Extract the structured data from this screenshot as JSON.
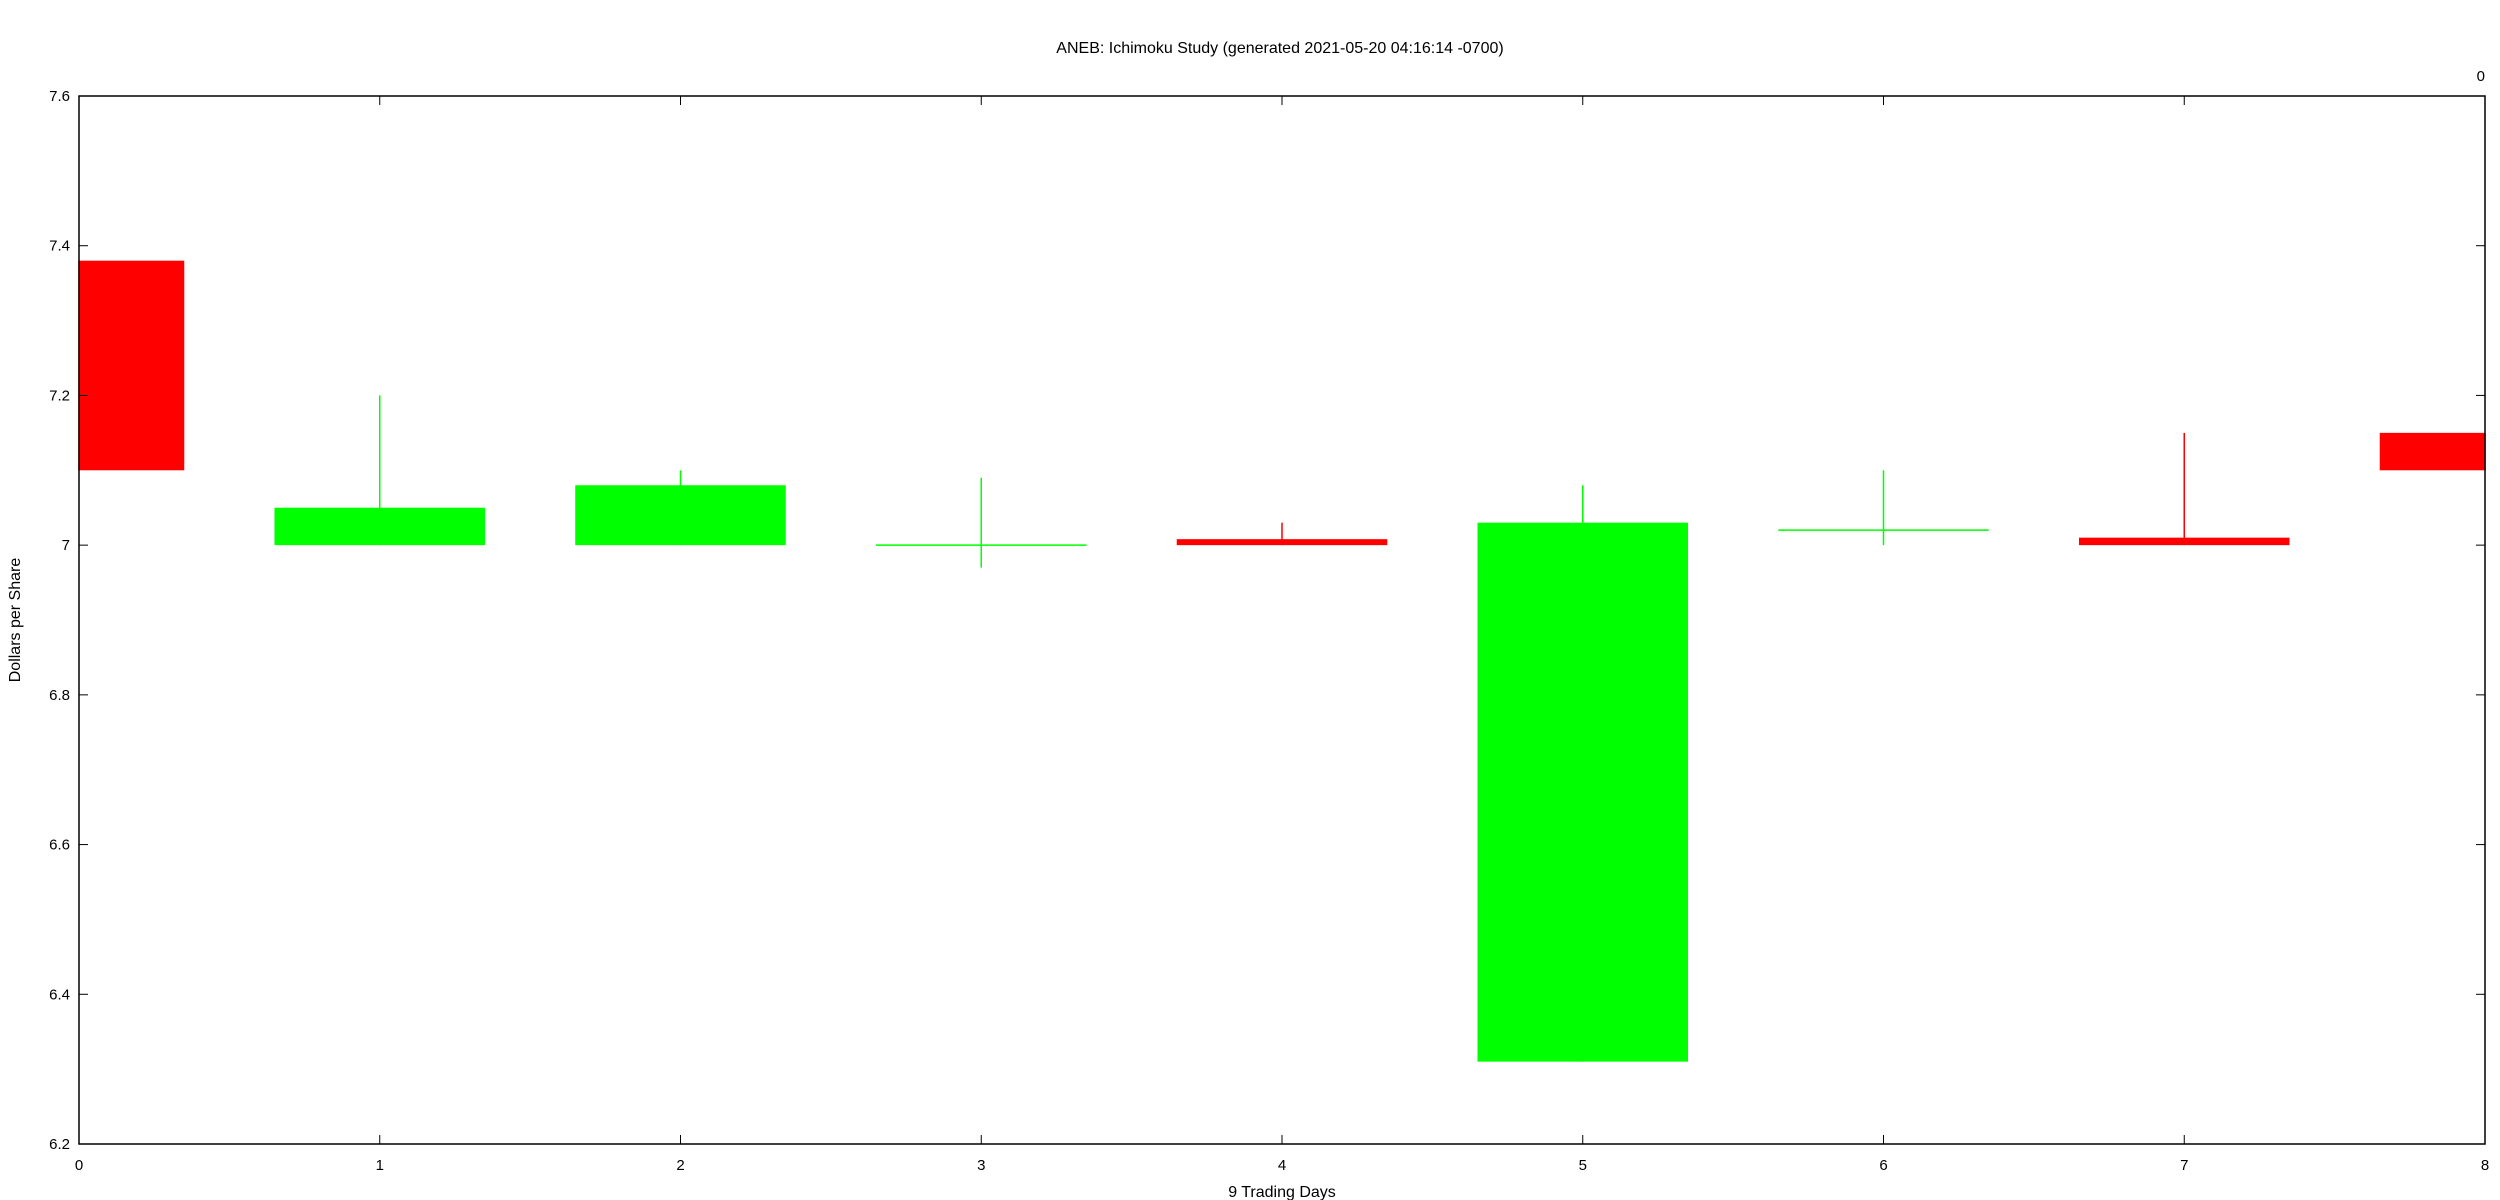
{
  "chart_data": {
    "type": "candlestick",
    "title": "ANEB: Ichimoku Study (generated  2021-05-20 04:16:14 -0700)",
    "xlabel": "9 Trading Days",
    "ylabel": "Dollars per Share",
    "top_right_label": "0",
    "xlim": [
      0,
      8
    ],
    "ylim": [
      6.2,
      7.6
    ],
    "x_ticks": [
      "0",
      "1",
      "2",
      "3",
      "4",
      "5",
      "6",
      "7",
      "8"
    ],
    "y_ticks": [
      "6.2",
      "6.4",
      "6.6",
      "6.8",
      "7",
      "7.2",
      "7.4",
      "7.6"
    ],
    "grid": false,
    "colors": {
      "up": "#00ff00",
      "down": "#ff0000"
    },
    "candles": [
      {
        "x": 0,
        "open": 7.38,
        "close": 7.1,
        "high": 7.38,
        "low": 7.1,
        "direction": "down"
      },
      {
        "x": 1,
        "open": 7.0,
        "close": 7.05,
        "high": 7.2,
        "low": 7.0,
        "direction": "up"
      },
      {
        "x": 2,
        "open": 7.0,
        "close": 7.08,
        "high": 7.1,
        "low": 7.0,
        "direction": "up"
      },
      {
        "x": 3,
        "open": 7.0,
        "close": 7.0,
        "high": 7.09,
        "low": 6.97,
        "direction": "up"
      },
      {
        "x": 4,
        "open": 7.008,
        "close": 7.0,
        "high": 7.03,
        "low": 7.0,
        "direction": "down"
      },
      {
        "x": 5,
        "open": 6.31,
        "close": 7.03,
        "high": 7.08,
        "low": 6.31,
        "direction": "up"
      },
      {
        "x": 6,
        "open": 7.02,
        "close": 7.02,
        "high": 7.1,
        "low": 7.0,
        "direction": "up"
      },
      {
        "x": 7,
        "open": 7.01,
        "close": 7.0,
        "high": 7.15,
        "low": 7.0,
        "direction": "down"
      },
      {
        "x": 8,
        "open": 7.15,
        "close": 7.1,
        "high": 7.15,
        "low": 7.1,
        "direction": "down"
      }
    ]
  }
}
